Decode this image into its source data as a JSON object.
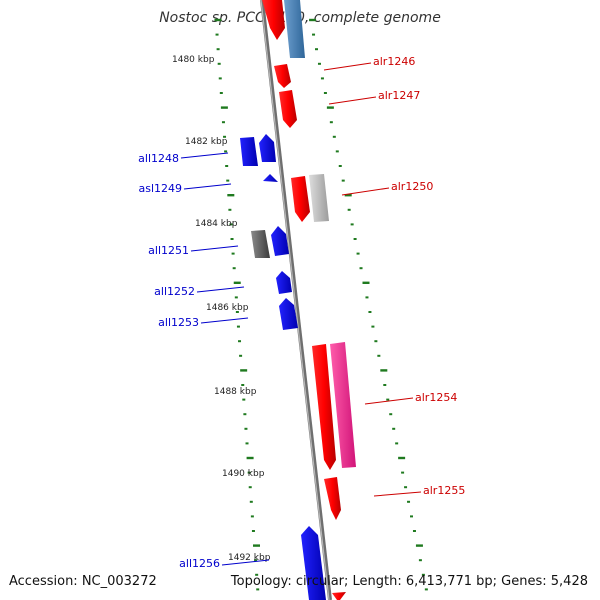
{
  "title": "Nostoc sp. PCC 7120, complete genome",
  "footer": {
    "accession": "Accession: NC_003272",
    "summary": "Topology: circular; Length: 6,413,771 bp; Genes: 5,428"
  },
  "colors": {
    "backbone": "#8c8c8c",
    "tick": "#1f7a1f",
    "forward_gene": "#ff0000",
    "reverse_gene": "#0000ff",
    "forward_label": "#cc0000",
    "reverse_label": "#0000cc"
  },
  "scale_labels": [
    "1480 kbp",
    "1482 kbp",
    "1484 kbp",
    "1486 kbp",
    "1488 kbp",
    "1490 kbp",
    "1492 kbp"
  ],
  "genes": {
    "forward": [
      {
        "label": "alr1246",
        "color": "#ff0000"
      },
      {
        "label": "alr1247",
        "color": "#ff0000"
      },
      {
        "label": "alr1250",
        "color": "#ff0000"
      },
      {
        "label": "alr1254",
        "color": "#ff0000"
      },
      {
        "label": "alr1255",
        "color": "#ff0000"
      }
    ],
    "reverse": [
      {
        "label": "all1248",
        "color": "#0000ff"
      },
      {
        "label": "asl1249",
        "color": "#0000ff"
      },
      {
        "label": "all1251",
        "color": "#0000ff"
      },
      {
        "label": "all1252",
        "color": "#0000ff"
      },
      {
        "label": "all1253",
        "color": "#0000ff"
      },
      {
        "label": "all1256",
        "color": "#0000ff"
      }
    ]
  }
}
